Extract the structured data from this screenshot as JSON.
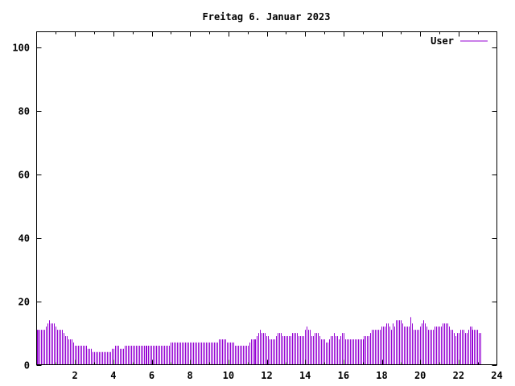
{
  "chart_data": {
    "type": "bar",
    "title": "Freitag 6. Januar 2023",
    "xlabel": "",
    "ylabel": "",
    "xlim": [
      0,
      24
    ],
    "ylim": [
      0,
      105
    ],
    "x_ticks": [
      "2",
      "4",
      "6",
      "8",
      "10",
      "12",
      "14",
      "16",
      "18",
      "20",
      "22",
      "24"
    ],
    "y_ticks": [
      "0",
      "20",
      "40",
      "60",
      "80",
      "100"
    ],
    "grid": false,
    "legend_position": "top-right",
    "series": [
      {
        "name": "User",
        "color": "#9400d3",
        "x_step_hours": 0.0833,
        "values": [
          11,
          11,
          11,
          11,
          11,
          11,
          12,
          13,
          14,
          13,
          13,
          13,
          12,
          11,
          11,
          11,
          11,
          10,
          9,
          9,
          8,
          8,
          8,
          7,
          6,
          6,
          6,
          6,
          6,
          6,
          6,
          6,
          5,
          5,
          5,
          4,
          4,
          4,
          4,
          4,
          4,
          4,
          4,
          4,
          4,
          4,
          4,
          5,
          5,
          6,
          6,
          6,
          5,
          5,
          5,
          6,
          6,
          6,
          6,
          6,
          6,
          6,
          6,
          6,
          6,
          6,
          6,
          6,
          6,
          6,
          6,
          6,
          6,
          6,
          6,
          6,
          6,
          6,
          6,
          6,
          6,
          6,
          6,
          6,
          7,
          7,
          7,
          7,
          7,
          7,
          7,
          7,
          7,
          7,
          7,
          7,
          7,
          7,
          7,
          7,
          7,
          7,
          7,
          7,
          7,
          7,
          7,
          7,
          7,
          7,
          7,
          7,
          7,
          7,
          8,
          8,
          8,
          8,
          8,
          7,
          7,
          7,
          7,
          7,
          6,
          6,
          6,
          6,
          6,
          6,
          6,
          6,
          6,
          7,
          8,
          8,
          8,
          8,
          9,
          10,
          11,
          10,
          10,
          10,
          9,
          9,
          8,
          8,
          8,
          8,
          9,
          10,
          10,
          10,
          9,
          9,
          9,
          9,
          9,
          9,
          10,
          10,
          10,
          10,
          9,
          9,
          9,
          9,
          11,
          12,
          11,
          11,
          9,
          9,
          10,
          10,
          10,
          9,
          8,
          8,
          8,
          7,
          7,
          8,
          9,
          9,
          10,
          9,
          9,
          8,
          9,
          10,
          10,
          8,
          8,
          8,
          8,
          8,
          8,
          8,
          8,
          8,
          8,
          8,
          8,
          9,
          9,
          9,
          9,
          10,
          11,
          11,
          11,
          11,
          11,
          11,
          12,
          12,
          12,
          13,
          13,
          12,
          11,
          13,
          12,
          14,
          14,
          14,
          14,
          13,
          12,
          12,
          12,
          12,
          15,
          13,
          11,
          11,
          11,
          11,
          12,
          13,
          14,
          13,
          12,
          11,
          11,
          11,
          11,
          12,
          12,
          12,
          12,
          12,
          13,
          13,
          13,
          13,
          12,
          11,
          11,
          10,
          9,
          10,
          10,
          11,
          11,
          11,
          10,
          10,
          11,
          12,
          12,
          11,
          11,
          11,
          11,
          10,
          10
        ]
      }
    ]
  }
}
